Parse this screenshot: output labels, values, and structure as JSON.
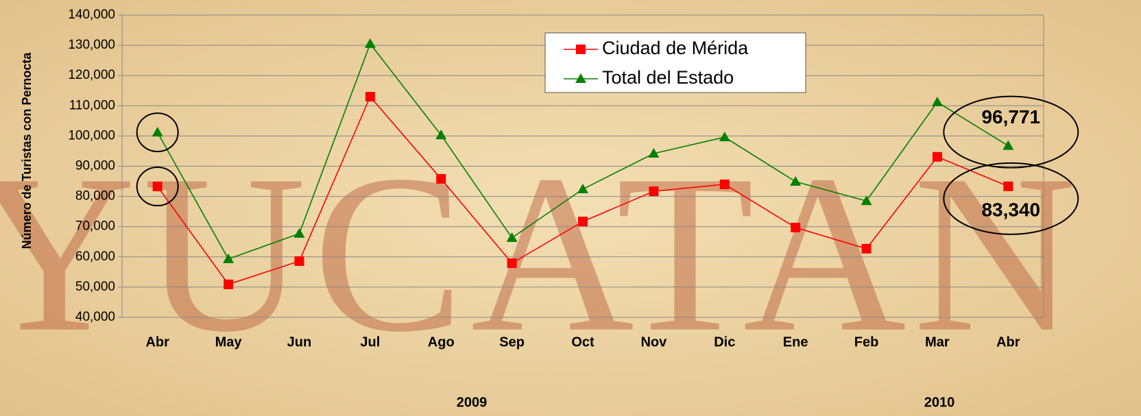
{
  "chart_data": {
    "type": "line",
    "y_label": "Número de Turistas con Pernocta",
    "watermark": "YUCATAN",
    "categories": [
      "Abr",
      "May",
      "Jun",
      "Jul",
      "Ago",
      "Sep",
      "Oct",
      "Nov",
      "Dic",
      "Ene",
      "Feb",
      "Mar",
      "Abr"
    ],
    "annotations": [
      "2009",
      "2010"
    ],
    "series": [
      {
        "name": "Ciudad de Mérida",
        "color": "#ff0000",
        "marker": "square",
        "values": [
          83300,
          50900,
          58600,
          113000,
          85800,
          57900,
          71700,
          81700,
          84000,
          69700,
          62700,
          93100,
          83340
        ],
        "value_labels": [
          null,
          null,
          null,
          null,
          null,
          null,
          null,
          null,
          null,
          null,
          null,
          null,
          "83,340"
        ]
      },
      {
        "name": "Total del Estado",
        "color": "#008000",
        "marker": "triangle",
        "values": [
          101200,
          59300,
          67700,
          130500,
          100300,
          66300,
          82400,
          94200,
          99600,
          84900,
          78500,
          111200,
          96771
        ],
        "value_labels": [
          null,
          null,
          null,
          null,
          null,
          null,
          null,
          null,
          null,
          null,
          null,
          null,
          "96,771"
        ]
      }
    ],
    "ylim": [
      40000,
      140000
    ],
    "yticks": [
      {
        "value": 40000,
        "label": "40,000"
      },
      {
        "value": 50000,
        "label": "50,000"
      },
      {
        "value": 60000,
        "label": "60,000"
      },
      {
        "value": 70000,
        "label": "70,000"
      },
      {
        "value": 80000,
        "label": "80,000"
      },
      {
        "value": 90000,
        "label": "90,000"
      },
      {
        "value": 100000,
        "label": "100,000"
      },
      {
        "value": 110000,
        "label": "110,000"
      },
      {
        "value": 120000,
        "label": "120,000"
      },
      {
        "value": 130000,
        "label": "130,000"
      },
      {
        "value": 140000,
        "label": "140,000"
      }
    ],
    "grid": true,
    "legend": "top"
  }
}
